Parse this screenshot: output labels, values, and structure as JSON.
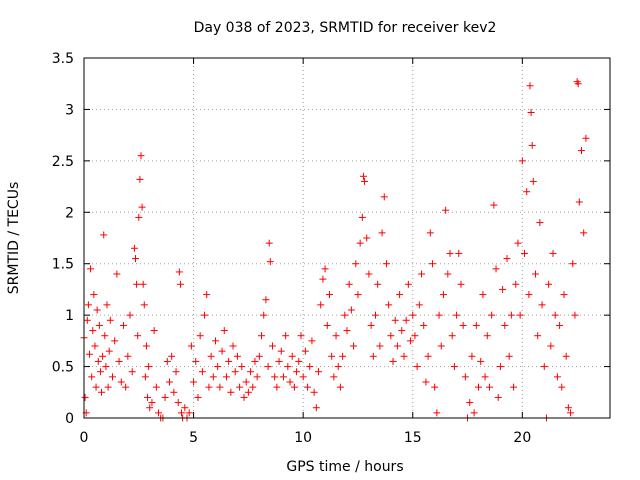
{
  "chart_data": {
    "type": "scatter",
    "title": "Day 038 of 2023, SRMTID for receiver kev2",
    "xlabel": "GPS time / hours",
    "ylabel": "SRMTID / TECUs",
    "xlim": [
      0,
      24
    ],
    "ylim": [
      0,
      3.5
    ],
    "xticks": [
      0,
      5,
      10,
      15,
      20
    ],
    "yticks": [
      0,
      0.5,
      1,
      1.5,
      2,
      2.5,
      3,
      3.5
    ],
    "xtick_labels": [
      "0",
      "5",
      "10",
      "15",
      "20"
    ],
    "ytick_labels": [
      "0",
      "0.5",
      "1",
      "1.5",
      "2",
      "2.5",
      "3",
      "3.5"
    ],
    "grid": true,
    "marker": "+",
    "colors": {
      "points": "#ff0000",
      "grid": "#a0a0a0",
      "axis": "#000000"
    },
    "series": [
      {
        "name": "SRMTID",
        "points": [
          [
            0.0,
            0.78
          ],
          [
            0.05,
            0.2
          ],
          [
            0.1,
            0.05
          ],
          [
            0.15,
            0.95
          ],
          [
            0.2,
            1.1
          ],
          [
            0.25,
            0.62
          ],
          [
            0.3,
            1.45
          ],
          [
            0.35,
            0.4
          ],
          [
            0.4,
            0.85
          ],
          [
            0.45,
            1.2
          ],
          [
            0.5,
            0.7
          ],
          [
            0.55,
            0.3
          ],
          [
            0.6,
            1.05
          ],
          [
            0.65,
            0.55
          ],
          [
            0.7,
            0.9
          ],
          [
            0.75,
            0.45
          ],
          [
            0.8,
            0.25
          ],
          [
            0.85,
            0.6
          ],
          [
            0.9,
            1.78
          ],
          [
            0.95,
            0.8
          ],
          [
            1.0,
            0.5
          ],
          [
            1.05,
            1.1
          ],
          [
            1.1,
            0.3
          ],
          [
            1.15,
            0.65
          ],
          [
            1.2,
            0.95
          ],
          [
            1.3,
            0.4
          ],
          [
            1.4,
            0.75
          ],
          [
            1.5,
            1.4
          ],
          [
            1.6,
            0.55
          ],
          [
            1.7,
            0.35
          ],
          [
            1.8,
            0.9
          ],
          [
            1.9,
            0.3
          ],
          [
            2.0,
            0.6
          ],
          [
            2.1,
            1.0
          ],
          [
            2.2,
            0.45
          ],
          [
            2.3,
            1.65
          ],
          [
            2.35,
            1.55
          ],
          [
            2.4,
            1.3
          ],
          [
            2.45,
            0.8
          ],
          [
            2.5,
            1.95
          ],
          [
            2.55,
            2.32
          ],
          [
            2.6,
            2.55
          ],
          [
            2.65,
            2.05
          ],
          [
            2.7,
            1.3
          ],
          [
            2.75,
            1.1
          ],
          [
            2.8,
            0.4
          ],
          [
            2.85,
            0.7
          ],
          [
            2.9,
            0.2
          ],
          [
            2.95,
            0.5
          ],
          [
            3.0,
            0.1
          ],
          [
            3.1,
            0.15
          ],
          [
            3.2,
            0.85
          ],
          [
            3.3,
            0.3
          ],
          [
            3.4,
            0.05
          ],
          [
            3.5,
            0.0
          ],
          [
            3.6,
            0.0
          ],
          [
            3.7,
            0.2
          ],
          [
            3.8,
            0.55
          ],
          [
            3.9,
            0.35
          ],
          [
            4.0,
            0.6
          ],
          [
            4.1,
            0.25
          ],
          [
            4.2,
            0.45
          ],
          [
            4.3,
            0.15
          ],
          [
            4.35,
            1.42
          ],
          [
            4.4,
            1.3
          ],
          [
            4.45,
            0.05
          ],
          [
            4.5,
            0.0
          ],
          [
            4.6,
            0.1
          ],
          [
            4.7,
            0.0
          ],
          [
            4.8,
            0.05
          ],
          [
            4.9,
            0.7
          ],
          [
            5.0,
            0.35
          ],
          [
            5.1,
            0.55
          ],
          [
            5.2,
            0.2
          ],
          [
            5.3,
            0.8
          ],
          [
            5.4,
            0.45
          ],
          [
            5.5,
            1.0
          ],
          [
            5.6,
            1.2
          ],
          [
            5.7,
            0.3
          ],
          [
            5.8,
            0.6
          ],
          [
            5.9,
            0.4
          ],
          [
            6.0,
            0.75
          ],
          [
            6.1,
            0.5
          ],
          [
            6.2,
            0.3
          ],
          [
            6.3,
            0.65
          ],
          [
            6.4,
            0.85
          ],
          [
            6.5,
            0.4
          ],
          [
            6.6,
            0.55
          ],
          [
            6.7,
            0.25
          ],
          [
            6.8,
            0.7
          ],
          [
            6.9,
            0.45
          ],
          [
            7.0,
            0.6
          ],
          [
            7.1,
            0.3
          ],
          [
            7.2,
            0.5
          ],
          [
            7.3,
            0.2
          ],
          [
            7.4,
            0.35
          ],
          [
            7.5,
            0.25
          ],
          [
            7.6,
            0.45
          ],
          [
            7.7,
            0.3
          ],
          [
            7.8,
            0.55
          ],
          [
            7.9,
            0.4
          ],
          [
            8.0,
            0.6
          ],
          [
            8.1,
            0.8
          ],
          [
            8.2,
            1.0
          ],
          [
            8.3,
            1.15
          ],
          [
            8.4,
            0.5
          ],
          [
            8.45,
            1.7
          ],
          [
            8.5,
            1.52
          ],
          [
            8.6,
            0.7
          ],
          [
            8.7,
            0.4
          ],
          [
            8.8,
            0.3
          ],
          [
            8.9,
            0.55
          ],
          [
            9.0,
            0.65
          ],
          [
            9.1,
            0.4
          ],
          [
            9.2,
            0.8
          ],
          [
            9.3,
            0.5
          ],
          [
            9.4,
            0.35
          ],
          [
            9.5,
            0.6
          ],
          [
            9.6,
            0.3
          ],
          [
            9.7,
            0.45
          ],
          [
            9.8,
            0.55
          ],
          [
            9.9,
            0.8
          ],
          [
            10.0,
            0.4
          ],
          [
            10.1,
            0.65
          ],
          [
            10.2,
            0.3
          ],
          [
            10.3,
            0.5
          ],
          [
            10.4,
            0.75
          ],
          [
            10.5,
            0.25
          ],
          [
            10.6,
            0.1
          ],
          [
            10.7,
            0.45
          ],
          [
            10.8,
            1.1
          ],
          [
            10.9,
            1.35
          ],
          [
            11.0,
            1.45
          ],
          [
            11.1,
            0.9
          ],
          [
            11.2,
            1.2
          ],
          [
            11.3,
            0.6
          ],
          [
            11.4,
            0.4
          ],
          [
            11.5,
            0.8
          ],
          [
            11.6,
            0.5
          ],
          [
            11.7,
            0.3
          ],
          [
            11.8,
            0.6
          ],
          [
            11.9,
            1.0
          ],
          [
            12.0,
            0.85
          ],
          [
            12.1,
            1.3
          ],
          [
            12.2,
            1.05
          ],
          [
            12.3,
            0.7
          ],
          [
            12.4,
            1.5
          ],
          [
            12.5,
            1.2
          ],
          [
            12.6,
            1.7
          ],
          [
            12.7,
            1.95
          ],
          [
            12.75,
            2.35
          ],
          [
            12.8,
            2.3
          ],
          [
            12.9,
            1.75
          ],
          [
            13.0,
            1.4
          ],
          [
            13.1,
            0.9
          ],
          [
            13.2,
            0.6
          ],
          [
            13.3,
            1.0
          ],
          [
            13.4,
            1.3
          ],
          [
            13.5,
            0.7
          ],
          [
            13.6,
            1.8
          ],
          [
            13.7,
            2.15
          ],
          [
            13.8,
            1.5
          ],
          [
            13.9,
            1.1
          ],
          [
            14.0,
            0.8
          ],
          [
            14.1,
            0.55
          ],
          [
            14.2,
            0.95
          ],
          [
            14.3,
            0.7
          ],
          [
            14.4,
            1.2
          ],
          [
            14.5,
            0.85
          ],
          [
            14.6,
            0.6
          ],
          [
            14.7,
            0.95
          ],
          [
            14.8,
            1.3
          ],
          [
            14.9,
            0.75
          ],
          [
            15.0,
            1.0
          ],
          [
            15.1,
            0.8
          ],
          [
            15.2,
            0.5
          ],
          [
            15.3,
            1.1
          ],
          [
            15.4,
            1.4
          ],
          [
            15.5,
            0.9
          ],
          [
            15.6,
            0.35
          ],
          [
            15.7,
            0.6
          ],
          [
            15.8,
            1.8
          ],
          [
            15.9,
            1.5
          ],
          [
            16.0,
            0.3
          ],
          [
            16.1,
            0.05
          ],
          [
            16.2,
            1.0
          ],
          [
            16.3,
            0.7
          ],
          [
            16.4,
            1.2
          ],
          [
            16.5,
            2.02
          ],
          [
            16.6,
            1.4
          ],
          [
            16.7,
            1.6
          ],
          [
            16.8,
            0.8
          ],
          [
            16.9,
            0.5
          ],
          [
            17.0,
            1.0
          ],
          [
            17.1,
            1.6
          ],
          [
            17.2,
            1.3
          ],
          [
            17.3,
            0.9
          ],
          [
            17.4,
            0.4
          ],
          [
            17.5,
            0.0
          ],
          [
            17.6,
            0.15
          ],
          [
            17.7,
            0.6
          ],
          [
            17.8,
            0.05
          ],
          [
            17.9,
            0.9
          ],
          [
            18.0,
            0.3
          ],
          [
            18.1,
            0.55
          ],
          [
            18.2,
            1.2
          ],
          [
            18.3,
            0.4
          ],
          [
            18.4,
            0.8
          ],
          [
            18.5,
            0.3
          ],
          [
            18.6,
            1.0
          ],
          [
            18.7,
            2.07
          ],
          [
            18.8,
            1.45
          ],
          [
            18.9,
            0.2
          ],
          [
            19.0,
            0.5
          ],
          [
            19.1,
            1.25
          ],
          [
            19.2,
            0.9
          ],
          [
            19.3,
            1.55
          ],
          [
            19.4,
            0.6
          ],
          [
            19.5,
            1.0
          ],
          [
            19.6,
            0.3
          ],
          [
            19.7,
            1.3
          ],
          [
            19.8,
            1.7
          ],
          [
            19.9,
            1.0
          ],
          [
            20.0,
            2.5
          ],
          [
            20.1,
            1.6
          ],
          [
            20.2,
            2.2
          ],
          [
            20.3,
            1.2
          ],
          [
            20.35,
            3.23
          ],
          [
            20.4,
            2.97
          ],
          [
            20.45,
            2.65
          ],
          [
            20.5,
            2.3
          ],
          [
            20.6,
            1.4
          ],
          [
            20.7,
            0.8
          ],
          [
            20.8,
            1.9
          ],
          [
            20.9,
            1.1
          ],
          [
            21.0,
            0.5
          ],
          [
            21.1,
            0.0
          ],
          [
            21.2,
            1.3
          ],
          [
            21.3,
            0.7
          ],
          [
            21.4,
            1.6
          ],
          [
            21.5,
            1.0
          ],
          [
            21.6,
            0.4
          ],
          [
            21.7,
            0.9
          ],
          [
            21.8,
            0.3
          ],
          [
            21.9,
            1.2
          ],
          [
            22.0,
            0.6
          ],
          [
            22.1,
            0.1
          ],
          [
            22.2,
            0.05
          ],
          [
            22.3,
            1.5
          ],
          [
            22.4,
            1.0
          ],
          [
            22.5,
            3.27
          ],
          [
            22.55,
            3.25
          ],
          [
            22.6,
            2.1
          ],
          [
            22.7,
            2.6
          ],
          [
            22.8,
            1.8
          ],
          [
            22.9,
            2.72
          ]
        ]
      }
    ]
  }
}
